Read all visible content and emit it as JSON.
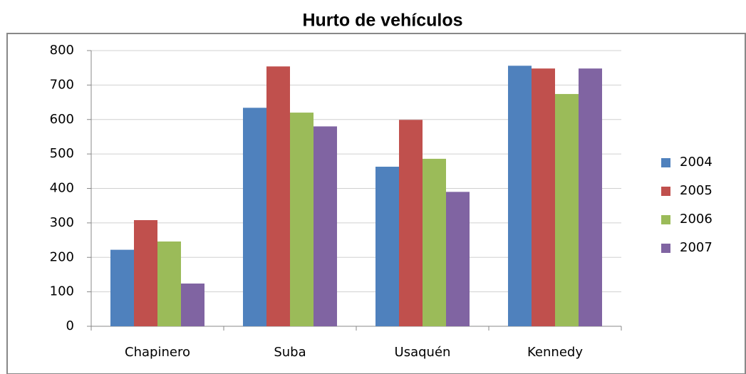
{
  "chart_data": {
    "type": "bar",
    "title": "Hurto de vehículos",
    "categories": [
      "Chapinero",
      "Suba",
      "Usaquén",
      "Kennedy"
    ],
    "series": [
      {
        "name": "2004",
        "color": "#4f81bd",
        "values": [
          222,
          634,
          463,
          756
        ]
      },
      {
        "name": "2005",
        "color": "#c0504d",
        "values": [
          308,
          754,
          599,
          748
        ]
      },
      {
        "name": "2006",
        "color": "#9bbb59",
        "values": [
          246,
          620,
          486,
          674
        ]
      },
      {
        "name": "2007",
        "color": "#8064a2",
        "values": [
          124,
          580,
          390,
          748
        ]
      }
    ],
    "ylim": [
      0,
      800
    ],
    "yticks": [
      0,
      100,
      200,
      300,
      400,
      500,
      600,
      700,
      800
    ],
    "grid": true,
    "legend": "right"
  }
}
